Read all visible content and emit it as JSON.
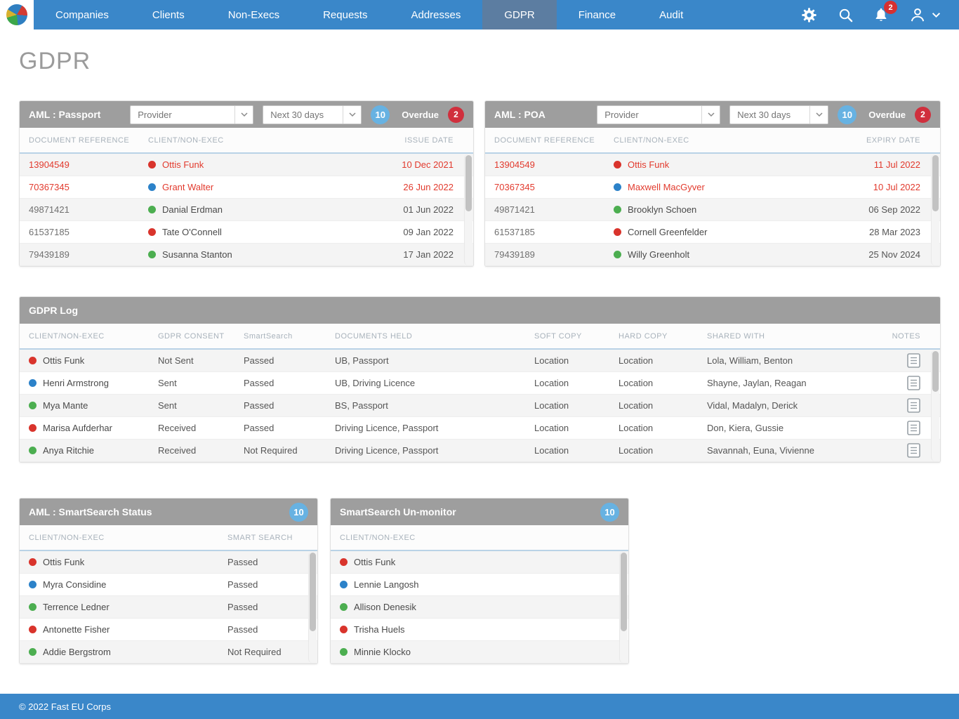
{
  "nav": {
    "items": [
      "Companies",
      "Clients",
      "Non-Execs",
      "Requests",
      "Addresses",
      "GDPR",
      "Finance",
      "Audit"
    ],
    "active": "GDPR",
    "notifications": "2"
  },
  "page": {
    "title": "GDPR"
  },
  "passport_panel": {
    "title": "AML : Passport",
    "filters": {
      "provider": "Provider",
      "period": "Next 30 days"
    },
    "count": "10",
    "overdue_label": "Overdue",
    "overdue_count": "2",
    "columns": [
      "DOCUMENT REFERENCE",
      "CLIENT/NON-EXEC",
      "ISSUE DATE"
    ],
    "rows": [
      {
        "ref": "13904549",
        "status": "red",
        "name": "Ottis Funk",
        "date": "10 Dec 2021",
        "overdue": true
      },
      {
        "ref": "70367345",
        "status": "blue",
        "name": "Grant Walter",
        "date": "26 Jun 2022",
        "overdue": true
      },
      {
        "ref": "49871421",
        "status": "green",
        "name": "Danial Erdman",
        "date": "01 Jun 2022",
        "overdue": false
      },
      {
        "ref": "61537185",
        "status": "red",
        "name": "Tate O'Connell",
        "date": "09 Jan 2022",
        "overdue": false
      },
      {
        "ref": "79439189",
        "status": "green",
        "name": "Susanna Stanton",
        "date": "17 Jan 2022",
        "overdue": false
      }
    ]
  },
  "poa_panel": {
    "title": "AML : POA",
    "filters": {
      "provider": "Provider",
      "period": "Next 30 days"
    },
    "count": "10",
    "overdue_label": "Overdue",
    "overdue_count": "2",
    "columns": [
      "DOCUMENT REFERENCE",
      "CLIENT/NON-EXEC",
      "EXPIRY DATE"
    ],
    "rows": [
      {
        "ref": "13904549",
        "status": "red",
        "name": "Ottis Funk",
        "date": "11 Jul 2022",
        "overdue": true
      },
      {
        "ref": "70367345",
        "status": "blue",
        "name": "Maxwell MacGyver",
        "date": "10 Jul 2022",
        "overdue": true
      },
      {
        "ref": "49871421",
        "status": "green",
        "name": "Brooklyn Schoen",
        "date": "06 Sep 2022",
        "overdue": false
      },
      {
        "ref": "61537185",
        "status": "red",
        "name": "Cornell Greenfelder",
        "date": "28 Mar 2023",
        "overdue": false
      },
      {
        "ref": "79439189",
        "status": "green",
        "name": "Willy Greenholt",
        "date": "25 Nov 2024",
        "overdue": false
      }
    ]
  },
  "gdpr_log": {
    "title": "GDPR Log",
    "columns": [
      "CLIENT/NON-EXEC",
      "GDPR CONSENT",
      "SmartSearch",
      "DOCUMENTS HELD",
      "SOFT COPY",
      "HARD COPY",
      "SHARED WITH",
      "NOTES"
    ],
    "rows": [
      {
        "status": "red",
        "name": "Ottis Funk",
        "consent": "Not Sent",
        "smartsearch": "Passed",
        "documents": "UB, Passport",
        "soft": "Location",
        "hard": "Location",
        "shared": "Lola, William, Benton"
      },
      {
        "status": "blue",
        "name": "Henri Armstrong",
        "consent": "Sent",
        "smartsearch": "Passed",
        "documents": "UB, Driving Licence",
        "soft": "Location",
        "hard": "Location",
        "shared": "Shayne, Jaylan, Reagan"
      },
      {
        "status": "green",
        "name": "Mya Mante",
        "consent": "Sent",
        "smartsearch": "Passed",
        "documents": "BS, Passport",
        "soft": "Location",
        "hard": "Location",
        "shared": "Vidal, Madalyn, Derick"
      },
      {
        "status": "red",
        "name": "Marisa Aufderhar",
        "consent": "Received",
        "smartsearch": "Passed",
        "documents": "Driving Licence, Passport",
        "soft": "Location",
        "hard": "Location",
        "shared": "Don, Kiera, Gussie"
      },
      {
        "status": "green",
        "name": "Anya Ritchie",
        "consent": "Received",
        "smartsearch": "Not Required",
        "documents": "Driving Licence, Passport",
        "soft": "Location",
        "hard": "Location",
        "shared": "Savannah, Euna, Vivienne"
      }
    ]
  },
  "smartsearch_panel": {
    "title": "AML : SmartSearch Status",
    "count": "10",
    "columns": [
      "CLIENT/NON-EXEC",
      "SMART SEARCH"
    ],
    "rows": [
      {
        "status": "red",
        "name": "Ottis Funk",
        "result": "Passed"
      },
      {
        "status": "blue",
        "name": "Myra Considine",
        "result": "Passed"
      },
      {
        "status": "green",
        "name": "Terrence Ledner",
        "result": "Passed"
      },
      {
        "status": "red",
        "name": "Antonette Fisher",
        "result": "Passed"
      },
      {
        "status": "green",
        "name": "Addie Bergstrom",
        "result": "Not Required"
      }
    ]
  },
  "unmonitor_panel": {
    "title": "SmartSearch Un-monitor",
    "count": "10",
    "columns": [
      "CLIENT/NON-EXEC"
    ],
    "rows": [
      {
        "status": "red",
        "name": "Ottis Funk"
      },
      {
        "status": "blue",
        "name": "Lennie Langosh"
      },
      {
        "status": "green",
        "name": "Allison Denesik"
      },
      {
        "status": "red",
        "name": "Trisha Huels"
      },
      {
        "status": "green",
        "name": "Minnie Klocko"
      }
    ]
  },
  "footer": {
    "copyright": "© 2022 Fast EU Corps"
  },
  "icons": {
    "settings": "gear",
    "search": "magnifier",
    "notifications": "bell",
    "account": "person + chevron-down",
    "dropdown": "chevron-down",
    "notes": "document-lines",
    "status_dot": "colored-circle"
  },
  "colors": {
    "nav_blue": "#3a87c9",
    "active_tab": "#5c7da1",
    "panel_header_gray": "#9e9e9e",
    "overdue_red": "#e23a2d",
    "badge_blue": "#67b2e2",
    "badge_red": "#d02f3d",
    "notification_red": "#d63031",
    "dot_red": "#d9342c",
    "dot_blue": "#2c82c9",
    "dot_green": "#4cae50"
  }
}
